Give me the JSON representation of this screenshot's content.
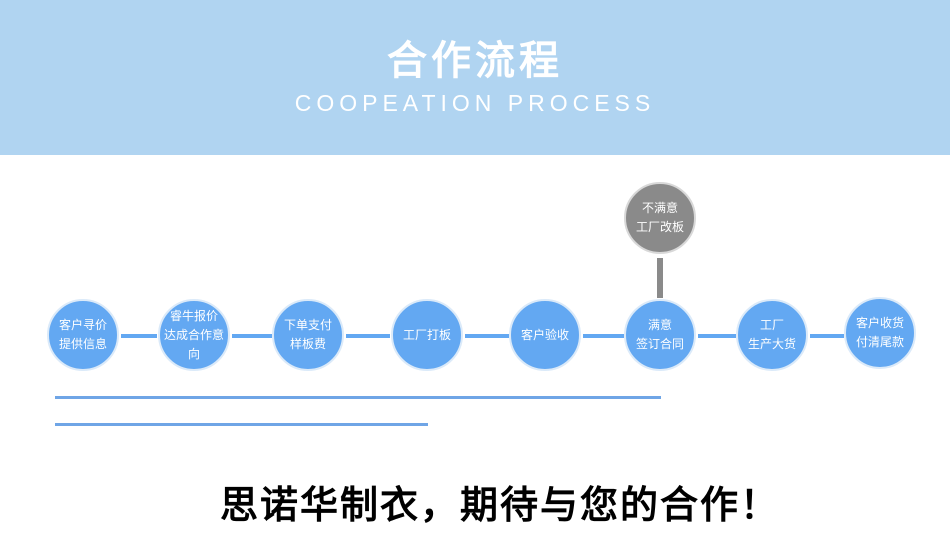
{
  "header": {
    "title": "合作流程",
    "subtitle": "COOPEATION PROCESS"
  },
  "steps": [
    {
      "l1": "客户寻价",
      "l2": "提供信息"
    },
    {
      "l1": "睿牛报价",
      "l2": "达成合作意向"
    },
    {
      "l1": "下单支付",
      "l2": "样板费"
    },
    {
      "l1": "工厂打板",
      "l2": ""
    },
    {
      "l1": "客户验收",
      "l2": ""
    },
    {
      "l1": "满意",
      "l2": "签订合同"
    },
    {
      "l1": "工厂",
      "l2": "生产大货"
    },
    {
      "l1": "客户收货",
      "l2": "付清尾款"
    }
  ],
  "branch": {
    "l1": "不满意",
    "l2": "工厂改板"
  },
  "slogan": "思诺华制衣，期待与您的合作！",
  "colors": {
    "header": "#b0d4f1",
    "step": "#63a8f2",
    "branch": "#8a8a8a"
  }
}
